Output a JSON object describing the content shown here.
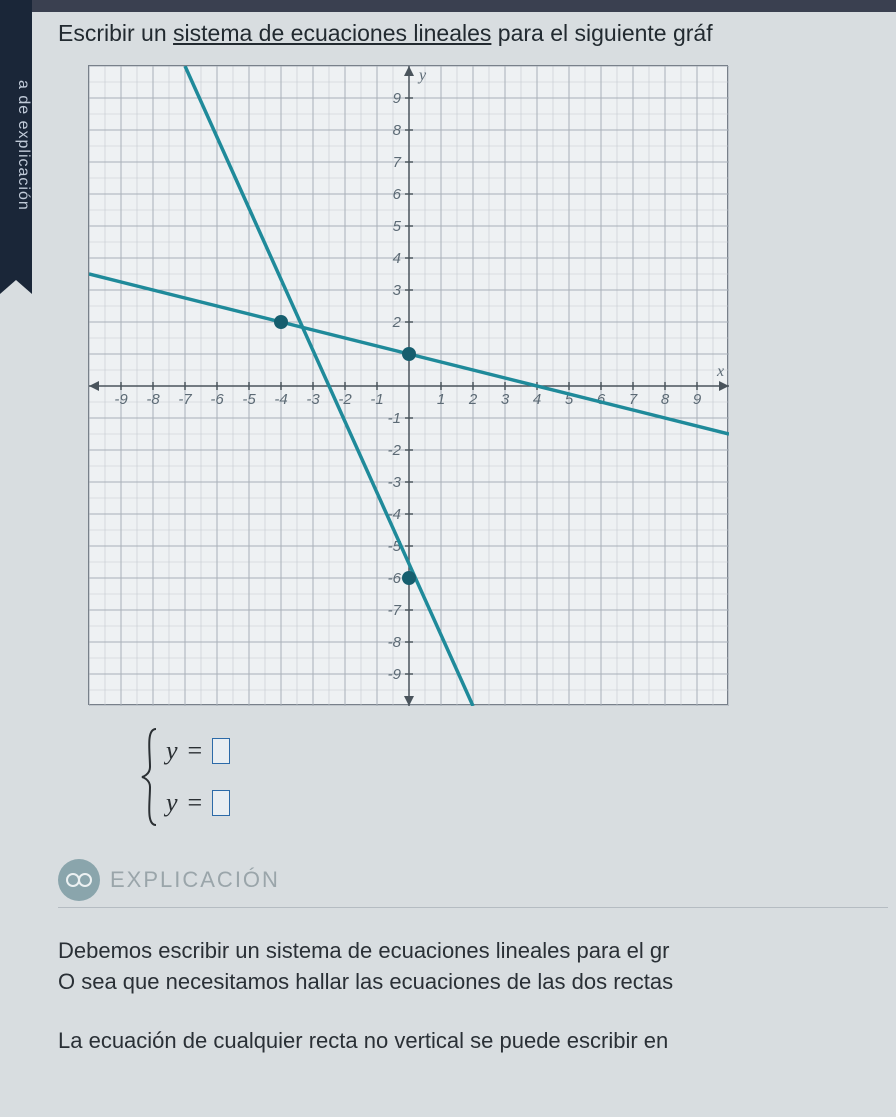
{
  "sidebar": {
    "label": "a de explicación"
  },
  "instruction": {
    "prefix": "Escribir un ",
    "underlined": "sistema de ecuaciones lineales",
    "suffix": " para el siguiente gráf"
  },
  "chart": {
    "type": "line",
    "xlim": [
      -10,
      10
    ],
    "ylim": [
      -10,
      10
    ],
    "major_step": 1,
    "minor_step": 0.5,
    "background_color": "#eef1f3",
    "grid_minor_color": "#c4c9cf",
    "grid_major_color": "#a8b0b8",
    "axis_color": "#4a545c",
    "axis_labels": {
      "x": "x",
      "y": "y"
    },
    "tick_labels_x": [
      -9,
      -8,
      -7,
      -6,
      -5,
      -4,
      -3,
      -2,
      -1,
      1,
      2,
      3,
      4,
      5,
      6,
      7,
      8,
      9
    ],
    "tick_labels_y": [
      -9,
      -8,
      -7,
      -6,
      -5,
      -4,
      -3,
      -2,
      -1,
      2,
      3,
      4,
      5,
      6,
      7,
      8,
      9
    ],
    "line_color": "#1f8a9a",
    "point_color": "#165e6e",
    "point_radius": 7,
    "line_width": 3.5,
    "series": [
      {
        "name": "steep-line",
        "x1": -7,
        "y1": 10,
        "x2": 2,
        "y2": -10
      },
      {
        "name": "shallow-line",
        "x1": -10,
        "y1": 3.5,
        "x2": 10,
        "y2": -1.5
      }
    ],
    "points": [
      {
        "x": -4,
        "y": 2
      },
      {
        "x": 0,
        "y": 1
      },
      {
        "x": 0,
        "y": -6
      }
    ]
  },
  "system": {
    "eq1_lhs": "y",
    "eq1_eq": "=",
    "eq2_lhs": "y",
    "eq2_eq": "="
  },
  "explain": {
    "heading": "EXPLICACIÓN",
    "p1a": "Debemos escribir un sistema de ecuaciones lineales para el gr",
    "p1b": "O sea que necesitamos hallar las ecuaciones de las dos rectas",
    "p2": "La ecuación de cualquier recta no vertical se puede escribir en"
  },
  "colors": {
    "body_bg": "#d8dde0",
    "sidebar_bg": "#1a2638",
    "sidebar_fg": "#c0cad8",
    "answer_box_border": "#2c6aa8",
    "icon_bg": "#8aa5ac",
    "heading_fg": "#9aa5aa"
  }
}
